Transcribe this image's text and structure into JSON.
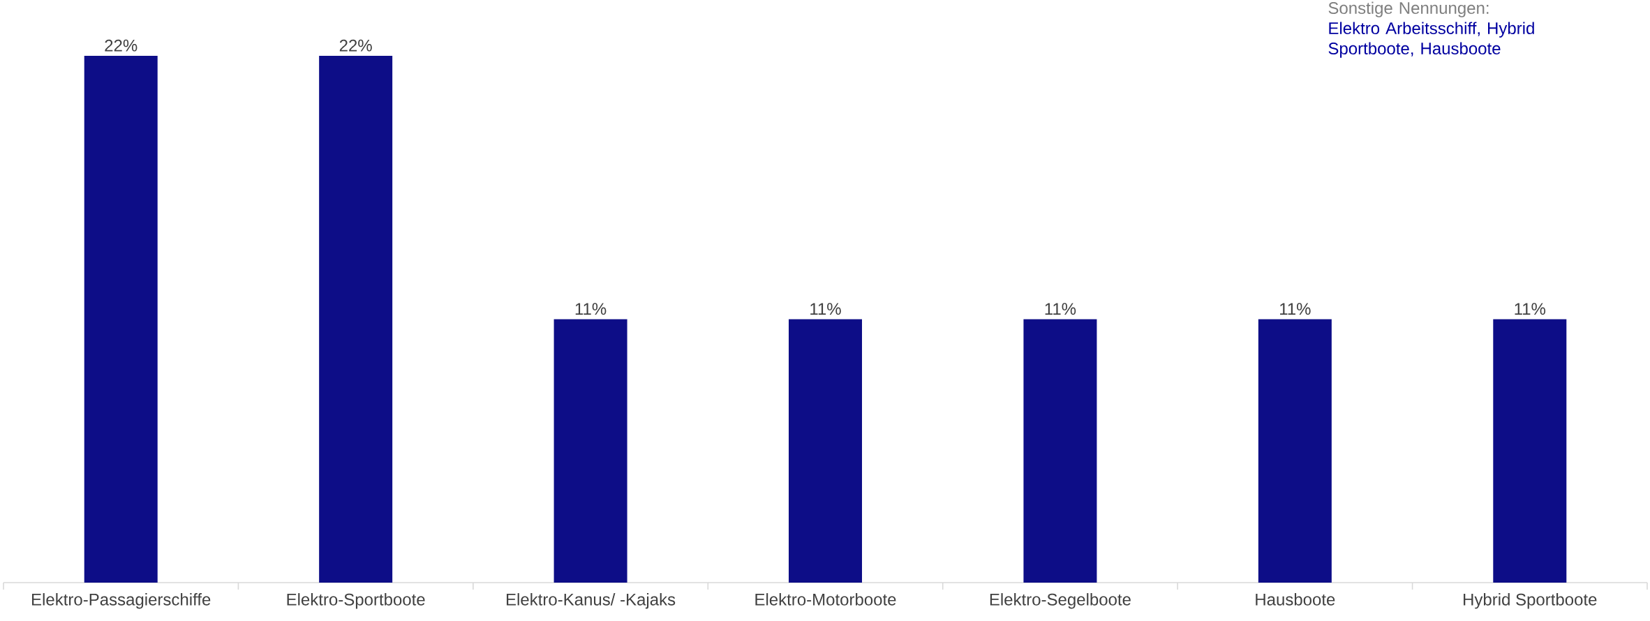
{
  "chart_data": {
    "type": "bar",
    "categories": [
      "Elektro-Passagierschiffe",
      "Elektro-Sportboote",
      "Elektro-Kanus/ -Kajaks",
      "Elektro-Motorboote",
      "Elektro-Segelboote",
      "Hausboote",
      "Hybrid Sportboote"
    ],
    "values": [
      22,
      22,
      11,
      11,
      11,
      11,
      11
    ],
    "value_labels": [
      "22%",
      "22%",
      "11%",
      "11%",
      "11%",
      "11%",
      "11%"
    ],
    "color": "#0d0d87",
    "annotations": [
      "Sonstige Nennungen:",
      "Elektro Arbeitsschiff, Hybrid Sportboote, Hausboote"
    ],
    "legend": false
  }
}
